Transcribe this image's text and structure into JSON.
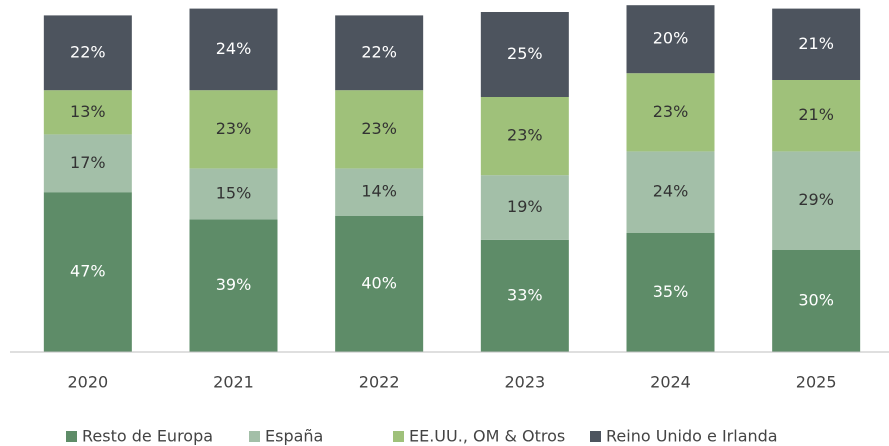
{
  "chart_data": {
    "type": "stacked_bar",
    "categories": [
      "2020",
      "2021",
      "2022",
      "2023",
      "2024",
      "2025"
    ],
    "series": [
      {
        "name": "Resto de Europa",
        "color": "#5e8c68",
        "label_color": "#ffffff",
        "values": [
          47,
          39,
          40,
          33,
          35,
          30
        ],
        "value_labels": [
          "47%",
          "39%",
          "40%",
          "33%",
          "35%",
          "30%"
        ]
      },
      {
        "name": "España",
        "color": "#a3bfa8",
        "label_color": "#333333",
        "values": [
          17,
          15,
          14,
          19,
          24,
          29
        ],
        "value_labels": [
          "17%",
          "15%",
          "14%",
          "19%",
          "24%",
          "29%"
        ]
      },
      {
        "name": "EE.UU., OM & Otros",
        "color": "#9fc17a",
        "label_color": "#333333",
        "values": [
          13,
          23,
          23,
          23,
          23,
          21
        ],
        "value_labels": [
          "13%",
          "23%",
          "23%",
          "23%",
          "23%",
          "21%"
        ]
      },
      {
        "name": "Reino Unido e Irlanda",
        "color": "#4d545e",
        "label_color": "#ffffff",
        "values": [
          22,
          24,
          22,
          25,
          20,
          21
        ],
        "value_labels": [
          "22%",
          "24%",
          "22%",
          "25%",
          "20%",
          "21%"
        ]
      }
    ],
    "ylim": [
      0,
      100
    ],
    "legend": "bottom"
  }
}
